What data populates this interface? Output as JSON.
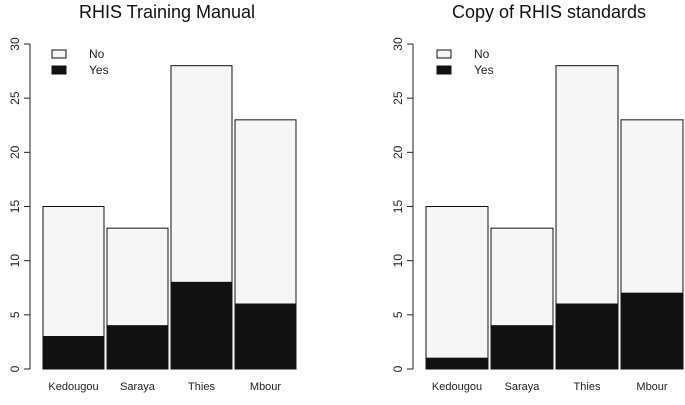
{
  "chart_data": [
    {
      "type": "bar",
      "stacked": true,
      "title": "RHIS Training Manual",
      "categories": [
        "Kedougou",
        "Saraya",
        "Thies",
        "Mbour"
      ],
      "series": [
        {
          "name": "Yes",
          "values": [
            3,
            4,
            8,
            6
          ],
          "color": "#111111"
        },
        {
          "name": "No",
          "values": [
            12,
            9,
            20,
            17
          ],
          "color": "#f6f6f6"
        }
      ],
      "legend": {
        "entries": [
          "No",
          "Yes"
        ],
        "placement": "top-left"
      },
      "ylim": [
        0,
        30
      ],
      "yticks": [
        0,
        5,
        10,
        15,
        20,
        25,
        30
      ],
      "grid": false
    },
    {
      "type": "bar",
      "stacked": true,
      "title": "Copy of RHIS standards",
      "categories": [
        "Kedougou",
        "Saraya",
        "Thies",
        "Mbour"
      ],
      "series": [
        {
          "name": "Yes",
          "values": [
            1,
            4,
            6,
            7
          ],
          "color": "#111111"
        },
        {
          "name": "No",
          "values": [
            14,
            9,
            22,
            16
          ],
          "color": "#f6f6f6"
        }
      ],
      "legend": {
        "entries": [
          "No",
          "Yes"
        ],
        "placement": "top-left"
      },
      "ylim": [
        0,
        30
      ],
      "yticks": [
        0,
        5,
        10,
        15,
        20,
        25,
        30
      ],
      "grid": false
    }
  ]
}
